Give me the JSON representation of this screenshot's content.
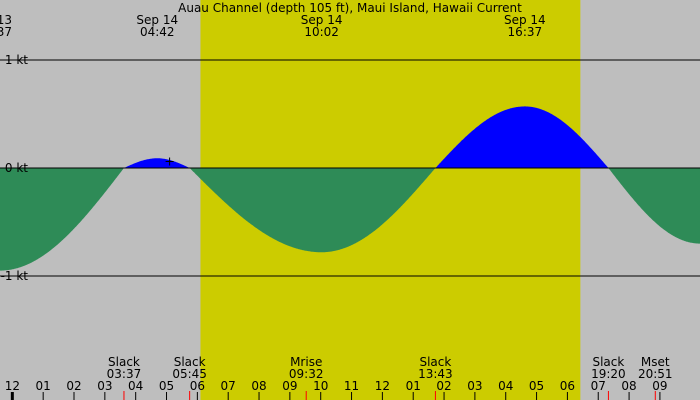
{
  "chart_data": {
    "type": "area",
    "title": "Auau Channel (depth 105 ft), Maui Island, Hawaii Current",
    "x_unit": "hours",
    "xlim": [
      -0.4,
      22.3
    ],
    "ylim": [
      -1.85,
      1.55
    ],
    "yticks": [
      {
        "value": 1,
        "label": "1 kt"
      },
      {
        "value": 0,
        "label": "0 kt"
      },
      {
        "value": -1,
        "label": "-1 kt"
      }
    ],
    "daylight": [
      6.1,
      18.42
    ],
    "top_labels": [
      {
        "x": -0.4,
        "line1": "13",
        "line2": "37",
        "clip": true
      },
      {
        "x": 4.7,
        "line1": "Sep 14",
        "line2": "04:42"
      },
      {
        "x": 10.03,
        "line1": "Sep 14",
        "line2": "10:02"
      },
      {
        "x": 16.62,
        "line1": "Sep 14",
        "line2": "16:37"
      }
    ],
    "bottom_events": [
      {
        "x": 3.62,
        "label": "Slack",
        "time": "03:37",
        "marker": true
      },
      {
        "x": 5.75,
        "label": "Slack",
        "time": "05:45",
        "marker": true
      },
      {
        "x": 9.53,
        "label": "Mrise",
        "time": "09:32",
        "marker": true
      },
      {
        "x": 13.72,
        "label": "Slack",
        "time": "13:43",
        "marker": true
      },
      {
        "x": 19.33,
        "label": "Slack",
        "time": "19:20",
        "marker": true
      },
      {
        "x": 20.85,
        "label": "Mset",
        "time": "20:51",
        "marker": true
      }
    ],
    "hour_ticks": [
      {
        "x": -1,
        "label": "11"
      },
      {
        "x": 0,
        "label": "12",
        "bold": true
      },
      {
        "x": 1,
        "label": "01"
      },
      {
        "x": 2,
        "label": "02"
      },
      {
        "x": 3,
        "label": "03"
      },
      {
        "x": 4,
        "label": "04"
      },
      {
        "x": 5,
        "label": "05"
      },
      {
        "x": 6,
        "label": "06"
      },
      {
        "x": 7,
        "label": "07"
      },
      {
        "x": 8,
        "label": "08"
      },
      {
        "x": 9,
        "label": "09"
      },
      {
        "x": 10,
        "label": "10"
      },
      {
        "x": 11,
        "label": "11"
      },
      {
        "x": 12,
        "label": "12"
      },
      {
        "x": 13,
        "label": "01"
      },
      {
        "x": 14,
        "label": "02"
      },
      {
        "x": 15,
        "label": "03"
      },
      {
        "x": 16,
        "label": "04"
      },
      {
        "x": 17,
        "label": "05"
      },
      {
        "x": 18,
        "label": "06"
      },
      {
        "x": 19,
        "label": "07"
      },
      {
        "x": 20,
        "label": "08"
      },
      {
        "x": 21,
        "label": "09"
      }
    ],
    "extrema": [
      {
        "x": -0.4,
        "y": -0.95
      },
      {
        "x": 3.62,
        "y": 0
      },
      {
        "x": 4.7,
        "y": 0.09
      },
      {
        "x": 5.75,
        "y": 0
      },
      {
        "x": 10.03,
        "y": -0.78
      },
      {
        "x": 13.72,
        "y": 0
      },
      {
        "x": 16.62,
        "y": 0.57
      },
      {
        "x": 19.33,
        "y": 0
      },
      {
        "x": 22.3,
        "y": -0.7
      }
    ],
    "crosshair": {
      "x": 5.1,
      "y": 0.06
    },
    "colors": {
      "background": "#bebebe",
      "daylight": "#cccc00",
      "flood": "#0000ff",
      "ebb": "#2e8b57",
      "grid": "#000000",
      "event_marker": "#ff0000"
    }
  }
}
